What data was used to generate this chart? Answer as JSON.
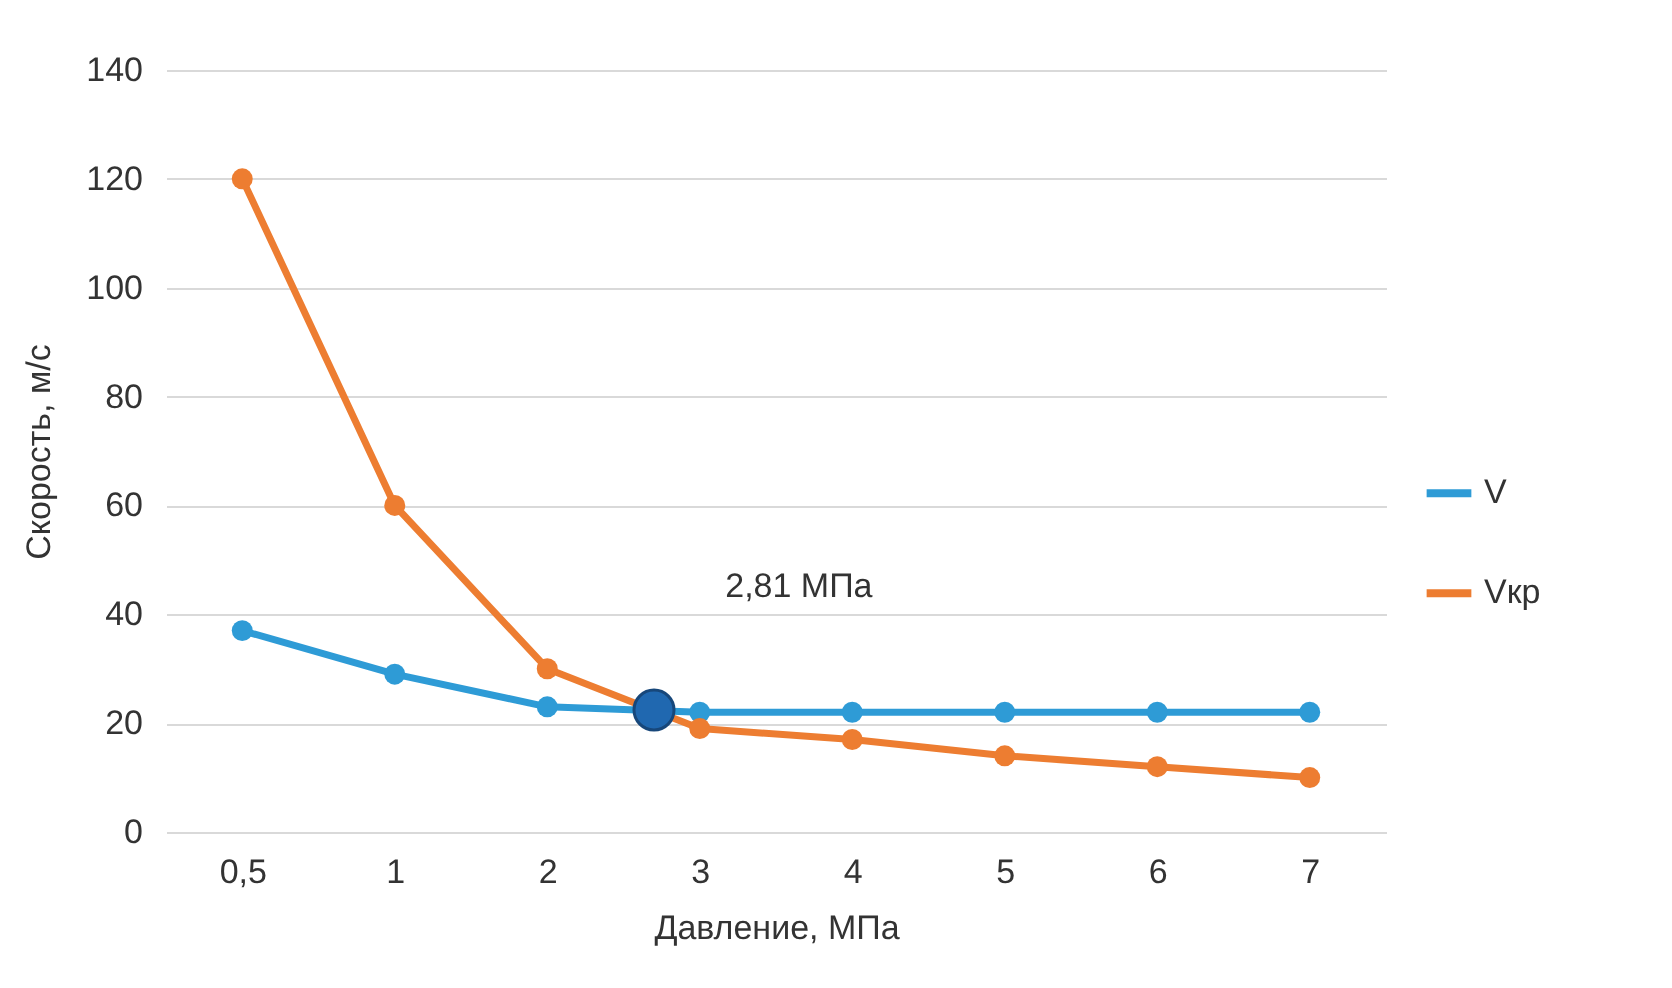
{
  "chart_data": {
    "type": "line",
    "xlabel": "Давление, МПа",
    "ylabel": "Скорость, м/с",
    "categories": [
      "0,5",
      "1",
      "2",
      "3",
      "4",
      "5",
      "6",
      "7"
    ],
    "series": [
      {
        "name": "V",
        "color": "#2e9bd6",
        "values": [
          37,
          29,
          23,
          22,
          22,
          22,
          22,
          22
        ]
      },
      {
        "name": "Vкр",
        "color": "#ed7d31",
        "values": [
          120,
          60,
          30,
          19,
          17,
          14,
          12,
          10
        ]
      }
    ],
    "annotations": [
      "2,81 МПа"
    ],
    "ylim": [
      0,
      140
    ],
    "yticks": [
      0,
      20,
      40,
      60,
      80,
      100,
      120,
      140
    ],
    "grid": "y",
    "legend": "right",
    "marker": "circle",
    "line_style": "solid"
  }
}
